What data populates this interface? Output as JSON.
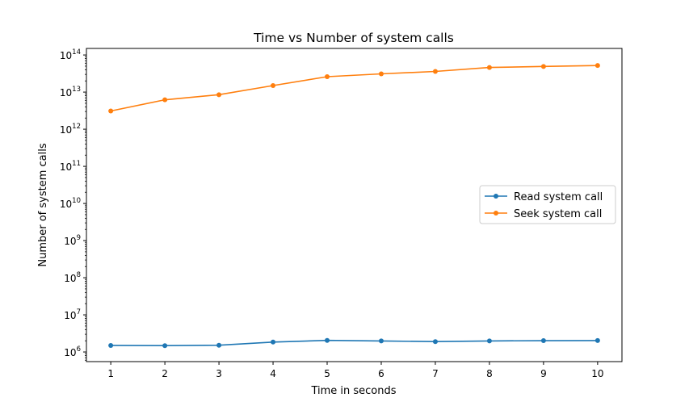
{
  "chart_data": {
    "type": "line",
    "title": "Time vs Number of system calls",
    "xlabel": "Time in seconds",
    "ylabel": "Number of system calls",
    "yscale": "log",
    "x": [
      1,
      2,
      3,
      4,
      5,
      6,
      7,
      8,
      9,
      10
    ],
    "x_ticks": [
      "1",
      "2",
      "3",
      "4",
      "5",
      "6",
      "7",
      "8",
      "9",
      "10"
    ],
    "y_ticks": [
      {
        "value": 1000000.0,
        "base": "10",
        "exp": "6"
      },
      {
        "value": 10000000.0,
        "base": "10",
        "exp": "7"
      },
      {
        "value": 100000000.0,
        "base": "10",
        "exp": "8"
      },
      {
        "value": 1000000000.0,
        "base": "10",
        "exp": "9"
      },
      {
        "value": 10000000000.0,
        "base": "10",
        "exp": "10"
      },
      {
        "value": 100000000000.0,
        "base": "10",
        "exp": "11"
      },
      {
        "value": 1000000000000.0,
        "base": "10",
        "exp": "12"
      },
      {
        "value": 10000000000000.0,
        "base": "10",
        "exp": "13"
      },
      {
        "value": 100000000000000.0,
        "base": "10",
        "exp": "14"
      }
    ],
    "xlim": [
      0.55,
      10.45
    ],
    "ylim": [
      550000,
      150000000000000
    ],
    "grid": false,
    "legend_position": "center-right",
    "series": [
      {
        "name": "Read system call",
        "color": "#1f77b4",
        "values": [
          1500000,
          1480000,
          1520000,
          1850000,
          2050000,
          1980000,
          1900000,
          1980000,
          2020000,
          2030000
        ]
      },
      {
        "name": "Seek system call",
        "color": "#ff7f0e",
        "values": [
          3100000000000,
          6200000000000,
          8500000000000,
          15000000000000,
          26000000000000,
          31000000000000,
          36000000000000,
          46000000000000,
          49000000000000,
          52000000000000
        ]
      }
    ]
  }
}
